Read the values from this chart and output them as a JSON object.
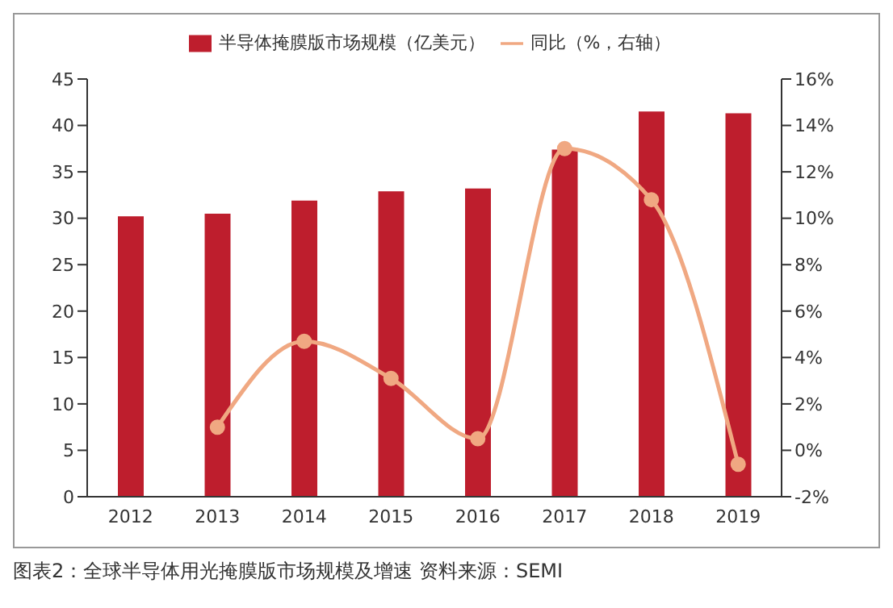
{
  "chart_data": {
    "type": "bar",
    "categories": [
      "2012",
      "2013",
      "2014",
      "2015",
      "2016",
      "2017",
      "2018",
      "2019"
    ],
    "series": [
      {
        "name": "半导体掩膜版市场规模（亿美元）",
        "color": "#be1e2d",
        "values": [
          30.2,
          30.5,
          31.9,
          32.9,
          33.2,
          37.4,
          41.5,
          41.3
        ]
      },
      {
        "name": "同比（%，右轴）",
        "type": "line",
        "axis": "y2",
        "color": "#f0a882",
        "values": [
          null,
          1.0,
          4.7,
          3.1,
          0.5,
          13.0,
          10.8,
          -0.6
        ]
      }
    ],
    "ylim": [
      0,
      45
    ],
    "yticks": [
      0,
      5,
      10,
      15,
      20,
      25,
      30,
      35,
      40,
      45
    ],
    "y2lim": [
      -2,
      16
    ],
    "y2ticks": [
      {
        "value": -2,
        "label": "-2%"
      },
      {
        "value": 0,
        "label": "0%"
      },
      {
        "value": 2,
        "label": "2%"
      },
      {
        "value": 4,
        "label": "4%"
      },
      {
        "value": 6,
        "label": "6%"
      },
      {
        "value": 8,
        "label": "8%"
      },
      {
        "value": 10,
        "label": "10%"
      },
      {
        "value": 12,
        "label": "12%"
      },
      {
        "value": 14,
        "label": "14%"
      },
      {
        "value": 16,
        "label": "16%"
      }
    ],
    "legend": "top",
    "grid": false,
    "marker": "circle",
    "annotations": [
      "图表2：全球半导体用光掩膜版市场规模及增速  资料来源：SEMI"
    ]
  }
}
